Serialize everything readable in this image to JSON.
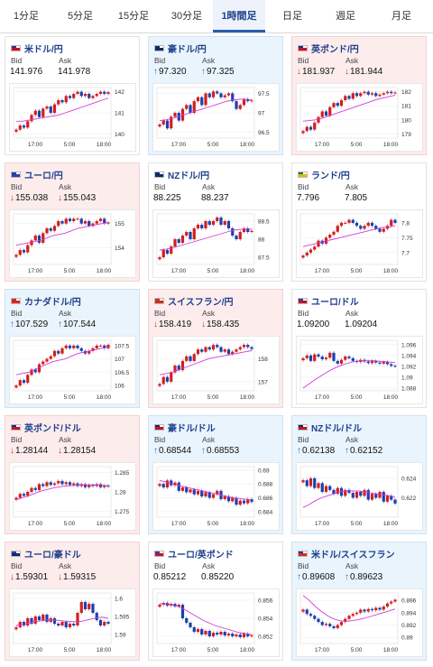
{
  "tabs": [
    {
      "label": "1分足",
      "active": false
    },
    {
      "label": "5分足",
      "active": false
    },
    {
      "label": "15分足",
      "active": false
    },
    {
      "label": "30分足",
      "active": false
    },
    {
      "label": "1時間足",
      "active": true
    },
    {
      "label": "日足",
      "active": false
    },
    {
      "label": "週足",
      "active": false
    },
    {
      "label": "月足",
      "active": false
    }
  ],
  "bid_label": "Bid",
  "ask_label": "Ask",
  "colors": {
    "up_candle": "#d11f1f",
    "down_candle": "#1d3fae",
    "ma_line": "#d63ad6",
    "up_arrow": "#1976d2",
    "down_arrow": "#d32f2f"
  },
  "cards": [
    {
      "title": "米ドル/円",
      "flag": "us",
      "bid": "141.976",
      "ask": "141.978",
      "direction": "none",
      "chart": {
        "x_ticks": [
          "17:00",
          "5:00",
          "18:00"
        ],
        "y_ticks": [
          "142",
          "141",
          "140"
        ],
        "ylim": [
          139.8,
          142.2
        ],
        "closes": [
          140.2,
          140.4,
          140.3,
          140.6,
          140.9,
          141.1,
          140.8,
          141.2,
          141.3,
          141.0,
          141.4,
          141.6,
          141.5,
          141.8,
          141.7,
          141.9,
          142.0,
          141.8,
          141.9,
          141.7,
          141.8,
          141.9,
          142.0,
          141.9,
          141.98
        ],
        "ma": [
          140.6,
          140.6,
          140.65,
          140.7,
          140.75,
          140.8,
          140.85,
          140.9,
          141.0,
          141.1,
          141.2,
          141.3,
          141.4,
          141.5,
          141.6,
          141.7
        ]
      }
    },
    {
      "title": "豪ドル/円",
      "flag": "au",
      "bid": "97.320",
      "ask": "97.325",
      "direction": "up",
      "chart": {
        "x_ticks": [
          "17:00",
          "5:00",
          "18:00"
        ],
        "y_ticks": [
          "97.5",
          "97",
          "96.5"
        ],
        "ylim": [
          96.35,
          97.65
        ],
        "closes": [
          96.7,
          96.8,
          96.6,
          96.9,
          97.0,
          96.8,
          97.1,
          97.2,
          97.0,
          97.3,
          97.4,
          97.2,
          97.5,
          97.4,
          97.55,
          97.5,
          97.4,
          97.45,
          97.5,
          97.3,
          97.1,
          97.2,
          97.35,
          97.3,
          97.32
        ],
        "ma": [
          96.8,
          96.82,
          96.85,
          96.9,
          96.95,
          97.0,
          97.05,
          97.1,
          97.15,
          97.2,
          97.25,
          97.3,
          97.33,
          97.35,
          97.35,
          97.34
        ]
      }
    },
    {
      "title": "英ポンド/円",
      "flag": "uk",
      "bid": "181.937",
      "ask": "181.944",
      "direction": "down",
      "chart": {
        "x_ticks": [
          "17:00",
          "5:00",
          "18:00"
        ],
        "y_ticks": [
          "182",
          "181",
          "180",
          "179"
        ],
        "ylim": [
          178.7,
          182.3
        ],
        "closes": [
          179.2,
          179.5,
          179.3,
          179.8,
          180.2,
          180.6,
          180.3,
          180.9,
          181.2,
          181.0,
          181.4,
          181.7,
          181.5,
          181.9,
          181.7,
          181.9,
          182.0,
          181.8,
          181.9,
          181.7,
          181.8,
          181.9,
          182.0,
          181.9,
          181.94
        ],
        "ma": [
          179.9,
          179.95,
          180.0,
          180.1,
          180.25,
          180.4,
          180.55,
          180.7,
          180.85,
          181.0,
          181.15,
          181.3,
          181.45,
          181.55,
          181.65,
          181.75
        ]
      }
    },
    {
      "title": "ユーロ/円",
      "flag": "eu",
      "bid": "155.038",
      "ask": "155.043",
      "direction": "down",
      "chart": {
        "x_ticks": [
          "17:00",
          "5:00",
          "18:00"
        ],
        "y_ticks": [
          "155",
          "154"
        ],
        "ylim": [
          153.3,
          155.4
        ],
        "closes": [
          153.7,
          153.9,
          153.8,
          154.1,
          154.3,
          154.5,
          154.2,
          154.6,
          154.8,
          154.7,
          154.9,
          155.1,
          155.0,
          155.2,
          155.1,
          155.2,
          155.2,
          155.0,
          155.1,
          154.9,
          155.0,
          155.1,
          155.2,
          155.0,
          155.04
        ],
        "ma": [
          154.1,
          154.15,
          154.2,
          154.25,
          154.3,
          154.4,
          154.5,
          154.55,
          154.6,
          154.7,
          154.8,
          154.85,
          154.9,
          154.95,
          155.0,
          155.05
        ]
      }
    },
    {
      "title": "NZドル/円",
      "flag": "nz",
      "bid": "88.225",
      "ask": "88.237",
      "direction": "none",
      "chart": {
        "x_ticks": [
          "17:00",
          "5:00",
          "18:00"
        ],
        "y_ticks": [
          "88.5",
          "88",
          "87.5"
        ],
        "ylim": [
          87.3,
          88.7
        ],
        "closes": [
          87.5,
          87.7,
          87.6,
          87.8,
          88.0,
          87.9,
          88.1,
          88.2,
          88.0,
          88.3,
          88.4,
          88.3,
          88.5,
          88.4,
          88.5,
          88.6,
          88.4,
          88.5,
          88.3,
          88.1,
          88.0,
          88.2,
          88.3,
          88.2,
          88.23
        ],
        "ma": [
          87.7,
          87.72,
          87.76,
          87.8,
          87.85,
          87.9,
          87.95,
          88.0,
          88.05,
          88.1,
          88.15,
          88.2,
          88.25,
          88.27,
          88.28,
          88.28
        ]
      }
    },
    {
      "title": "ランド/円",
      "flag": "za",
      "bid": "7.796",
      "ask": "7.805",
      "direction": "none",
      "chart": {
        "x_ticks": [
          "17:00",
          "5:00",
          "18:00"
        ],
        "y_ticks": [
          "7.8",
          "7.75",
          "7.7"
        ],
        "ylim": [
          7.66,
          7.83
        ],
        "closes": [
          7.69,
          7.7,
          7.71,
          7.72,
          7.74,
          7.73,
          7.75,
          7.76,
          7.77,
          7.79,
          7.8,
          7.8,
          7.81,
          7.8,
          7.79,
          7.78,
          7.79,
          7.8,
          7.79,
          7.78,
          7.77,
          7.78,
          7.79,
          7.81,
          7.8
        ],
        "ma": [
          7.72,
          7.725,
          7.73,
          7.735,
          7.74,
          7.745,
          7.75,
          7.755,
          7.76,
          7.765,
          7.77,
          7.775,
          7.78,
          7.785,
          7.785,
          7.79
        ]
      }
    },
    {
      "title": "カナダドル/円",
      "flag": "ca",
      "bid": "107.529",
      "ask": "107.544",
      "direction": "up",
      "chart": {
        "x_ticks": [
          "17:00",
          "5:00",
          "18:00"
        ],
        "y_ticks": [
          "107.5",
          "107",
          "106.5",
          "106"
        ],
        "ylim": [
          105.8,
          107.7
        ],
        "closes": [
          106.0,
          106.2,
          106.1,
          106.4,
          106.6,
          106.5,
          106.8,
          106.9,
          107.0,
          107.1,
          107.3,
          107.2,
          107.4,
          107.5,
          107.4,
          107.5,
          107.4,
          107.3,
          107.2,
          107.3,
          107.4,
          107.5,
          107.5,
          107.4,
          107.53
        ],
        "ma": [
          106.4,
          106.45,
          106.5,
          106.6,
          106.7,
          106.8,
          106.9,
          106.95,
          107.0,
          107.1,
          107.2,
          107.25,
          107.3,
          107.35,
          107.4,
          107.45
        ]
      }
    },
    {
      "title": "スイスフラン/円",
      "flag": "ch",
      "bid": "158.419",
      "ask": "158.435",
      "direction": "down",
      "chart": {
        "x_ticks": [
          "17:00",
          "5:00",
          "18:00"
        ],
        "y_ticks": [
          "158",
          "157"
        ],
        "ylim": [
          156.6,
          158.8
        ],
        "closes": [
          156.9,
          157.2,
          157.0,
          157.4,
          157.7,
          157.5,
          157.9,
          158.1,
          157.9,
          158.2,
          158.4,
          158.3,
          158.5,
          158.4,
          158.6,
          158.5,
          158.3,
          158.4,
          158.2,
          158.3,
          158.4,
          158.5,
          158.6,
          158.5,
          158.42
        ],
        "ma": [
          157.3,
          157.35,
          157.4,
          157.5,
          157.6,
          157.7,
          157.8,
          157.9,
          158.0,
          158.05,
          158.1,
          158.15,
          158.2,
          158.25,
          158.3,
          158.35
        ]
      }
    },
    {
      "title": "ユーロ/ドル",
      "flag": "euus",
      "bid": "1.09200",
      "ask": "1.09204",
      "direction": "none",
      "chart": {
        "x_ticks": [
          "17:00",
          "5:00",
          "18:00"
        ],
        "y_ticks": [
          "1.096",
          "1.094",
          "1.092",
          "1.09",
          "1.088"
        ],
        "ylim": [
          1.0875,
          1.0968
        ],
        "closes": [
          1.0935,
          1.094,
          1.093,
          1.0942,
          1.0938,
          1.0933,
          1.0936,
          1.0945,
          1.093,
          1.0925,
          1.0932,
          1.0938,
          1.0935,
          1.093,
          1.0928,
          1.0932,
          1.0929,
          1.0926,
          1.093,
          1.0927,
          1.0925,
          1.0928,
          1.0924,
          1.0921,
          1.092
        ],
        "ma": [
          1.088,
          1.0888,
          1.0896,
          1.0903,
          1.091,
          1.0916,
          1.0921,
          1.0925,
          1.0928,
          1.093,
          1.0931,
          1.0931,
          1.093,
          1.0929,
          1.0928,
          1.0927
        ]
      }
    },
    {
      "title": "英ポンド/ドル",
      "flag": "ukus",
      "bid": "1.28144",
      "ask": "1.28154",
      "direction": "down",
      "chart": {
        "x_ticks": [
          "17:00",
          "5:00",
          "18:00"
        ],
        "y_ticks": [
          "1.285",
          "1.28",
          "1.275"
        ],
        "ylim": [
          1.2735,
          1.2865
        ],
        "closes": [
          1.2785,
          1.2795,
          1.279,
          1.28,
          1.281,
          1.2805,
          1.282,
          1.2815,
          1.2825,
          1.2818,
          1.2822,
          1.2828,
          1.282,
          1.2825,
          1.2818,
          1.2822,
          1.2815,
          1.282,
          1.2812,
          1.2818,
          1.2815,
          1.282,
          1.2812,
          1.2816,
          1.2814
        ],
        "ma": [
          1.278,
          1.2785,
          1.279,
          1.2796,
          1.2802,
          1.2806,
          1.281,
          1.2813,
          1.2815,
          1.2816,
          1.2817,
          1.2818,
          1.2818,
          1.2818,
          1.2817,
          1.2816
        ]
      }
    },
    {
      "title": "豪ドル/ドル",
      "flag": "auus",
      "bid": "0.68544",
      "ask": "0.68553",
      "direction": "up",
      "chart": {
        "x_ticks": [
          "17:00",
          "5:00",
          "18:00"
        ],
        "y_ticks": [
          "0.69",
          "0.688",
          "0.686",
          "0.684"
        ],
        "ylim": [
          0.6832,
          0.6905
        ],
        "closes": [
          0.688,
          0.6875,
          0.6885,
          0.6878,
          0.6882,
          0.687,
          0.6875,
          0.6868,
          0.6872,
          0.6865,
          0.687,
          0.6862,
          0.6868,
          0.686,
          0.6865,
          0.687,
          0.6858,
          0.6862,
          0.6855,
          0.686,
          0.685,
          0.6856,
          0.6852,
          0.6858,
          0.6854
        ],
        "ma": [
          0.6885,
          0.6883,
          0.688,
          0.6878,
          0.6876,
          0.6874,
          0.6872,
          0.687,
          0.6868,
          0.6866,
          0.6864,
          0.6862,
          0.686,
          0.6859,
          0.6858,
          0.6857
        ]
      }
    },
    {
      "title": "NZドル/ドル",
      "flag": "nzus",
      "bid": "0.62138",
      "ask": "0.62152",
      "direction": "up",
      "chart": {
        "x_ticks": [
          "17:00",
          "5:00",
          "18:00"
        ],
        "y_ticks": [
          "0.624",
          "0.622"
        ],
        "ylim": [
          0.62,
          0.6252
        ],
        "closes": [
          0.6238,
          0.6232,
          0.624,
          0.623,
          0.6235,
          0.6226,
          0.6232,
          0.6228,
          0.6224,
          0.623,
          0.6222,
          0.6228,
          0.6225,
          0.622,
          0.6226,
          0.6222,
          0.6228,
          0.6218,
          0.6224,
          0.622,
          0.6226,
          0.6216,
          0.6222,
          0.6218,
          0.6214
        ],
        "ma": [
          0.621,
          0.6213,
          0.6217,
          0.622,
          0.6222,
          0.6224,
          0.6226,
          0.6227,
          0.6227,
          0.6227,
          0.6226,
          0.6225,
          0.6224,
          0.6223,
          0.6222,
          0.6221
        ]
      }
    },
    {
      "title": "ユーロ/豪ドル",
      "flag": "euau",
      "bid": "1.59301",
      "ask": "1.59315",
      "direction": "down",
      "chart": {
        "x_ticks": [
          "17:00",
          "5:00",
          "18:00"
        ],
        "y_ticks": [
          "1.6",
          "1.595",
          "1.59"
        ],
        "ylim": [
          1.5875,
          1.6015
        ],
        "closes": [
          1.592,
          1.5935,
          1.5925,
          1.5945,
          1.593,
          1.595,
          1.594,
          1.5955,
          1.5935,
          1.5945,
          1.593,
          1.5925,
          1.5935,
          1.592,
          1.593,
          1.5925,
          1.596,
          1.599,
          1.597,
          1.5985,
          1.596,
          1.594,
          1.5925,
          1.5935,
          1.593
        ],
        "ma": [
          1.5925,
          1.5928,
          1.5932,
          1.5936,
          1.5938,
          1.594,
          1.594,
          1.5939,
          1.5937,
          1.5936,
          1.5935,
          1.5938,
          1.5942,
          1.5946,
          1.5948,
          1.5945
        ]
      }
    },
    {
      "title": "ユーロ/英ポンド",
      "flag": "euuk",
      "bid": "0.85212",
      "ask": "0.85220",
      "direction": "none",
      "chart": {
        "x_ticks": [
          "17:00",
          "5:00",
          "18:00"
        ],
        "y_ticks": [
          "0.856",
          "0.854",
          "0.852"
        ],
        "ylim": [
          0.8512,
          0.8568
        ],
        "closes": [
          0.8555,
          0.8557,
          0.8554,
          0.8556,
          0.8553,
          0.8555,
          0.854,
          0.8535,
          0.853,
          0.8525,
          0.8528,
          0.8522,
          0.8526,
          0.852,
          0.8524,
          0.8522,
          0.8525,
          0.8521,
          0.8523,
          0.852,
          0.8522,
          0.8519,
          0.8523,
          0.852,
          0.8521
        ],
        "ma": [
          0.8556,
          0.8556,
          0.8555,
          0.8553,
          0.855,
          0.8546,
          0.8542,
          0.8538,
          0.8535,
          0.8532,
          0.853,
          0.8528,
          0.8526,
          0.8524,
          0.8523,
          0.8522
        ]
      }
    },
    {
      "title": "米ドル/スイスフラン",
      "flag": "usch",
      "bid": "0.89608",
      "ask": "0.89623",
      "direction": "up",
      "chart": {
        "x_ticks": [
          "17:00",
          "5:00",
          "18:00"
        ],
        "y_ticks": [
          "0.896",
          "0.894",
          "0.892",
          "0.89"
        ],
        "ylim": [
          0.889,
          0.8972
        ],
        "closes": [
          0.8945,
          0.8938,
          0.8935,
          0.893,
          0.8925,
          0.892,
          0.8922,
          0.8918,
          0.8915,
          0.892,
          0.8925,
          0.893,
          0.8935,
          0.8938,
          0.894,
          0.8945,
          0.8942,
          0.8946,
          0.8944,
          0.8948,
          0.8945,
          0.895,
          0.8955,
          0.8958,
          0.8961
        ],
        "ma": [
          0.8968,
          0.896,
          0.895,
          0.8942,
          0.8935,
          0.893,
          0.8927,
          0.8926,
          0.8927,
          0.8929,
          0.8931,
          0.8934,
          0.8937,
          0.894,
          0.8943,
          0.8946
        ]
      }
    }
  ]
}
